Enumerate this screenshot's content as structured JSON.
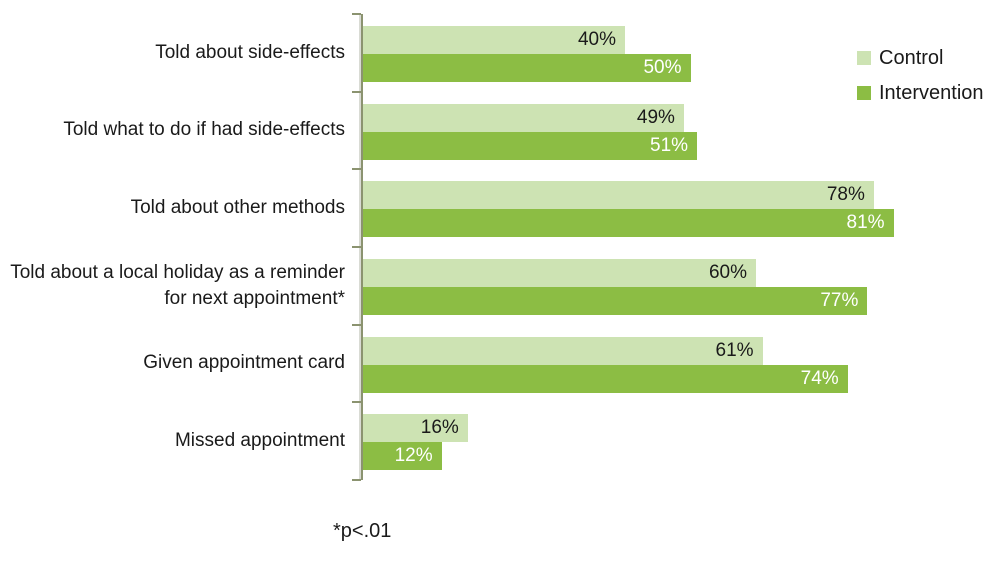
{
  "chart_data": {
    "type": "bar",
    "orientation": "horizontal",
    "title": "",
    "xlabel": "",
    "ylabel": "",
    "xlim": [
      0,
      100
    ],
    "grid": false,
    "legend_position": "top-right",
    "value_suffix": "%",
    "categories": [
      "Told about side-effects",
      "Told what to do if had side-effects",
      "Told about other methods",
      "Told about a local holiday as a reminder for next appointment*",
      "Given appointment card",
      "Missed appointment"
    ],
    "series": [
      {
        "name": "Control",
        "color": "#cde3b3",
        "label_color": "#1a1a1a",
        "values": [
          40,
          49,
          78,
          60,
          61,
          16
        ]
      },
      {
        "name": "Intervention",
        "color": "#8cbd44",
        "label_color": "#ffffff",
        "values": [
          50,
          51,
          81,
          77,
          74,
          12
        ]
      }
    ],
    "footnote": "*p<.01",
    "colors": {
      "axis": "#8b9370",
      "background": "#ffffff",
      "text": "#1a1a1a"
    }
  }
}
